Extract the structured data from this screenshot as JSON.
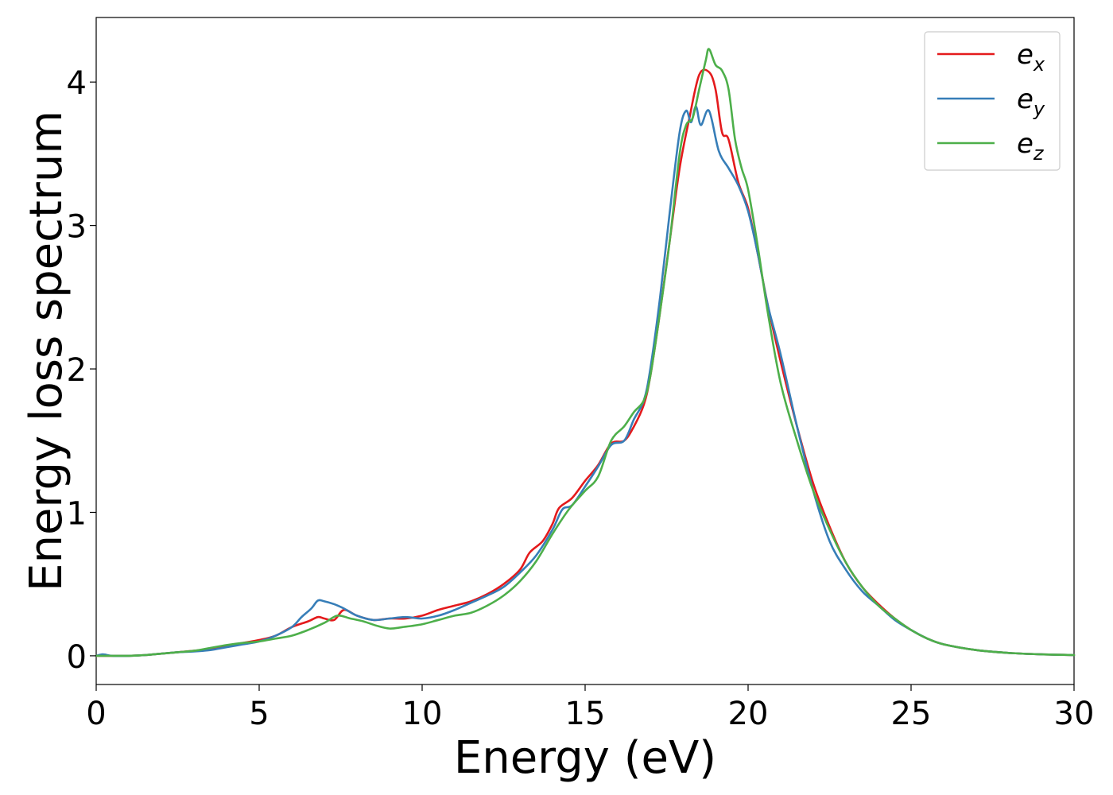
{
  "chart_data": {
    "type": "line",
    "title": "",
    "xlabel": "Energy (eV)",
    "ylabel": "Energy loss spectrum",
    "xlim": [
      0,
      30
    ],
    "ylim": [
      -0.2,
      4.45
    ],
    "xticks": [
      0,
      5,
      10,
      15,
      20,
      25,
      30
    ],
    "yticks": [
      0,
      1,
      2,
      3,
      4
    ],
    "grid": false,
    "legend_position": "top-right",
    "series": [
      {
        "name": "e_x",
        "label_base": "e",
        "label_sub": "x",
        "color": "#e41a1c",
        "points": [
          [
            0,
            0
          ],
          [
            0.5,
            0
          ],
          [
            1,
            0
          ],
          [
            1.5,
            0.005
          ],
          [
            2,
            0.015
          ],
          [
            2.5,
            0.025
          ],
          [
            3,
            0.035
          ],
          [
            3.5,
            0.05
          ],
          [
            4,
            0.07
          ],
          [
            4.5,
            0.09
          ],
          [
            5,
            0.11
          ],
          [
            5.5,
            0.14
          ],
          [
            6,
            0.2
          ],
          [
            6.5,
            0.24
          ],
          [
            6.8,
            0.27
          ],
          [
            7,
            0.26
          ],
          [
            7.3,
            0.25
          ],
          [
            7.6,
            0.32
          ],
          [
            8,
            0.28
          ],
          [
            8.5,
            0.25
          ],
          [
            9,
            0.26
          ],
          [
            9.5,
            0.26
          ],
          [
            10,
            0.28
          ],
          [
            10.5,
            0.32
          ],
          [
            11,
            0.35
          ],
          [
            11.5,
            0.38
          ],
          [
            12,
            0.43
          ],
          [
            12.5,
            0.5
          ],
          [
            13,
            0.6
          ],
          [
            13.3,
            0.72
          ],
          [
            13.7,
            0.8
          ],
          [
            14,
            0.92
          ],
          [
            14.2,
            1.03
          ],
          [
            14.6,
            1.1
          ],
          [
            15,
            1.22
          ],
          [
            15.4,
            1.33
          ],
          [
            15.8,
            1.48
          ],
          [
            16.2,
            1.5
          ],
          [
            16.5,
            1.6
          ],
          [
            16.8,
            1.75
          ],
          [
            17,
            1.95
          ],
          [
            17.3,
            2.4
          ],
          [
            17.6,
            2.9
          ],
          [
            17.9,
            3.4
          ],
          [
            18.2,
            3.75
          ],
          [
            18.5,
            4.05
          ],
          [
            18.8,
            4.07
          ],
          [
            19,
            3.95
          ],
          [
            19.2,
            3.65
          ],
          [
            19.4,
            3.6
          ],
          [
            19.7,
            3.3
          ],
          [
            20,
            3.12
          ],
          [
            20.3,
            2.8
          ],
          [
            20.6,
            2.45
          ],
          [
            21,
            2.05
          ],
          [
            21.5,
            1.6
          ],
          [
            22,
            1.2
          ],
          [
            22.5,
            0.9
          ],
          [
            23,
            0.65
          ],
          [
            23.5,
            0.48
          ],
          [
            24,
            0.36
          ],
          [
            24.5,
            0.26
          ],
          [
            25,
            0.18
          ],
          [
            25.5,
            0.12
          ],
          [
            26,
            0.08
          ],
          [
            27,
            0.04
          ],
          [
            28,
            0.02
          ],
          [
            29,
            0.01
          ],
          [
            30,
            0.005
          ]
        ]
      },
      {
        "name": "e_y",
        "label_base": "e",
        "label_sub": "y",
        "color": "#377eb8",
        "points": [
          [
            0,
            0
          ],
          [
            0.2,
            0.01
          ],
          [
            0.5,
            0
          ],
          [
            1,
            0
          ],
          [
            1.5,
            0.005
          ],
          [
            2,
            0.015
          ],
          [
            2.5,
            0.025
          ],
          [
            3,
            0.03
          ],
          [
            3.5,
            0.04
          ],
          [
            4,
            0.06
          ],
          [
            4.5,
            0.08
          ],
          [
            5,
            0.1
          ],
          [
            5.5,
            0.14
          ],
          [
            6,
            0.2
          ],
          [
            6.3,
            0.27
          ],
          [
            6.6,
            0.33
          ],
          [
            6.8,
            0.385
          ],
          [
            7,
            0.38
          ],
          [
            7.3,
            0.36
          ],
          [
            7.6,
            0.33
          ],
          [
            8,
            0.28
          ],
          [
            8.5,
            0.25
          ],
          [
            9,
            0.26
          ],
          [
            9.5,
            0.27
          ],
          [
            10,
            0.26
          ],
          [
            10.5,
            0.28
          ],
          [
            11,
            0.32
          ],
          [
            11.5,
            0.37
          ],
          [
            12,
            0.42
          ],
          [
            12.5,
            0.48
          ],
          [
            13,
            0.58
          ],
          [
            13.5,
            0.7
          ],
          [
            14,
            0.88
          ],
          [
            14.3,
            1.02
          ],
          [
            14.6,
            1.05
          ],
          [
            15,
            1.18
          ],
          [
            15.4,
            1.32
          ],
          [
            15.8,
            1.47
          ],
          [
            16.2,
            1.5
          ],
          [
            16.5,
            1.65
          ],
          [
            16.8,
            1.78
          ],
          [
            17,
            2
          ],
          [
            17.3,
            2.5
          ],
          [
            17.6,
            3.1
          ],
          [
            17.9,
            3.65
          ],
          [
            18.1,
            3.8
          ],
          [
            18.25,
            3.72
          ],
          [
            18.4,
            3.83
          ],
          [
            18.55,
            3.7
          ],
          [
            18.8,
            3.8
          ],
          [
            19.1,
            3.52
          ],
          [
            19.4,
            3.4
          ],
          [
            19.7,
            3.28
          ],
          [
            20,
            3.1
          ],
          [
            20.3,
            2.8
          ],
          [
            20.6,
            2.45
          ],
          [
            21,
            2.1
          ],
          [
            21.5,
            1.6
          ],
          [
            22,
            1.15
          ],
          [
            22.5,
            0.8
          ],
          [
            23,
            0.6
          ],
          [
            23.5,
            0.45
          ],
          [
            24,
            0.35
          ],
          [
            24.5,
            0.25
          ],
          [
            25,
            0.18
          ],
          [
            25.5,
            0.12
          ],
          [
            26,
            0.08
          ],
          [
            27,
            0.04
          ],
          [
            28,
            0.02
          ],
          [
            29,
            0.01
          ],
          [
            30,
            0.005
          ]
        ]
      },
      {
        "name": "e_z",
        "label_base": "e",
        "label_sub": "z",
        "color": "#4daf4a",
        "points": [
          [
            0,
            0
          ],
          [
            0.5,
            0
          ],
          [
            1,
            0
          ],
          [
            1.5,
            0.005
          ],
          [
            2,
            0.015
          ],
          [
            2.5,
            0.025
          ],
          [
            3,
            0.035
          ],
          [
            3.5,
            0.055
          ],
          [
            4,
            0.075
          ],
          [
            4.5,
            0.09
          ],
          [
            5,
            0.1
          ],
          [
            5.5,
            0.12
          ],
          [
            6,
            0.14
          ],
          [
            6.5,
            0.18
          ],
          [
            7,
            0.23
          ],
          [
            7.4,
            0.28
          ],
          [
            7.8,
            0.26
          ],
          [
            8.2,
            0.24
          ],
          [
            8.6,
            0.21
          ],
          [
            9,
            0.19
          ],
          [
            9.4,
            0.2
          ],
          [
            10,
            0.22
          ],
          [
            10.5,
            0.25
          ],
          [
            11,
            0.28
          ],
          [
            11.5,
            0.3
          ],
          [
            12,
            0.35
          ],
          [
            12.5,
            0.42
          ],
          [
            13,
            0.52
          ],
          [
            13.5,
            0.66
          ],
          [
            14,
            0.85
          ],
          [
            14.5,
            1.02
          ],
          [
            15,
            1.15
          ],
          [
            15.4,
            1.25
          ],
          [
            15.8,
            1.5
          ],
          [
            16.2,
            1.6
          ],
          [
            16.5,
            1.7
          ],
          [
            16.8,
            1.78
          ],
          [
            17,
            1.95
          ],
          [
            17.3,
            2.4
          ],
          [
            17.6,
            2.9
          ],
          [
            17.9,
            3.5
          ],
          [
            18.1,
            3.7
          ],
          [
            18.3,
            3.75
          ],
          [
            18.5,
            3.95
          ],
          [
            18.7,
            4.15
          ],
          [
            18.8,
            4.23
          ],
          [
            19,
            4.12
          ],
          [
            19.2,
            4.08
          ],
          [
            19.4,
            3.95
          ],
          [
            19.6,
            3.6
          ],
          [
            19.8,
            3.4
          ],
          [
            20,
            3.25
          ],
          [
            20.3,
            2.85
          ],
          [
            20.6,
            2.4
          ],
          [
            21,
            1.9
          ],
          [
            21.5,
            1.5
          ],
          [
            22,
            1.15
          ],
          [
            22.5,
            0.88
          ],
          [
            23,
            0.65
          ],
          [
            23.5,
            0.48
          ],
          [
            24,
            0.35
          ],
          [
            24.5,
            0.26
          ],
          [
            25,
            0.18
          ],
          [
            25.5,
            0.12
          ],
          [
            26,
            0.08
          ],
          [
            27,
            0.04
          ],
          [
            28,
            0.02
          ],
          [
            29,
            0.01
          ],
          [
            30,
            0.005
          ]
        ]
      }
    ]
  }
}
